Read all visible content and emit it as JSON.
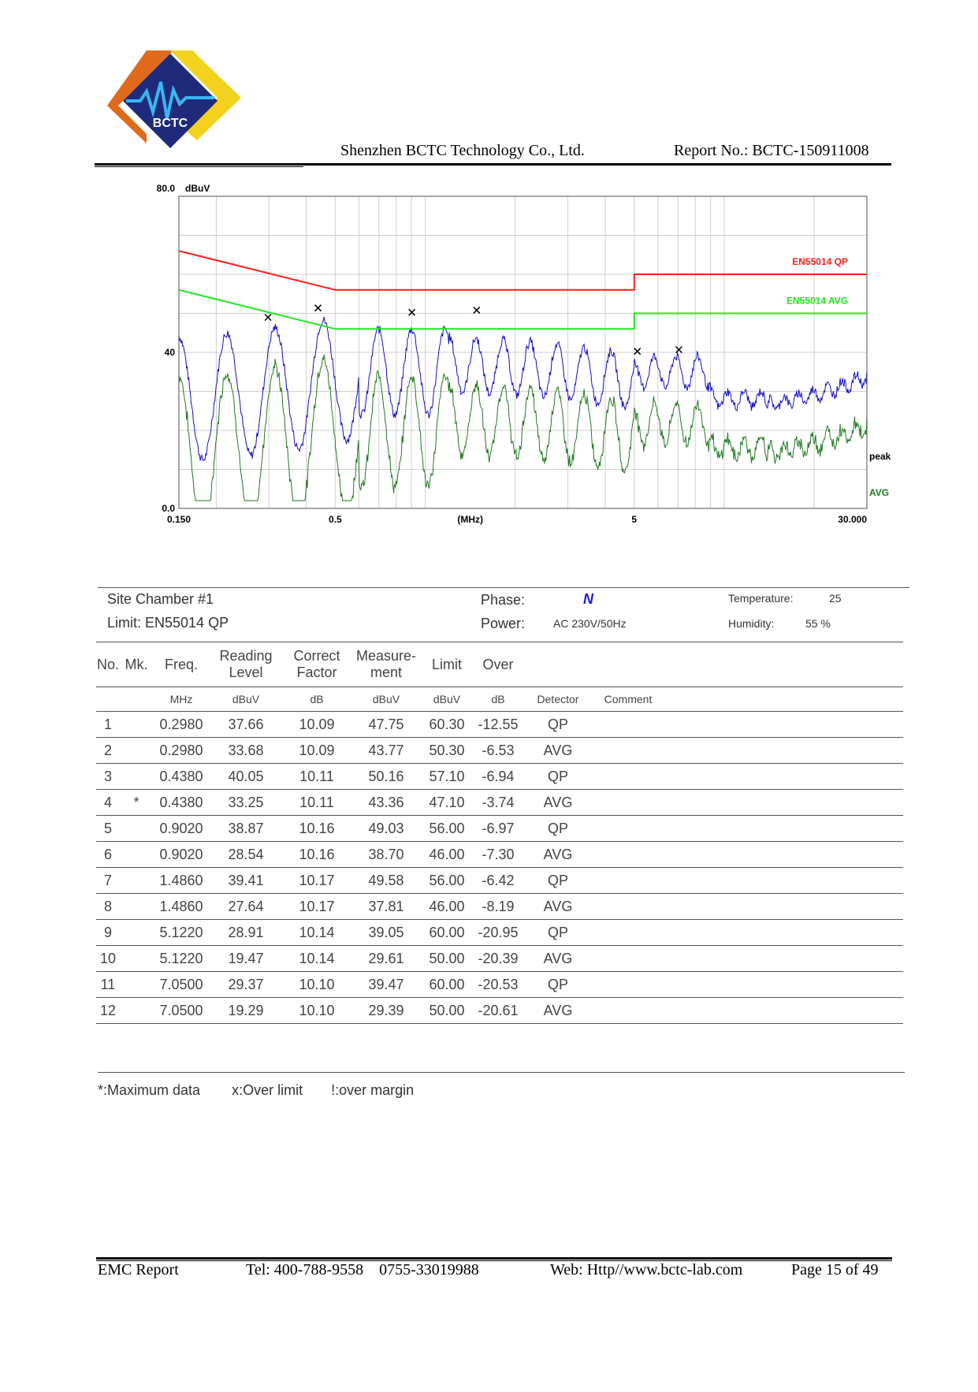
{
  "header": {
    "logo_text": "BCTC",
    "company": "Shenzhen BCTC Technology Co., Ltd.",
    "report_no": "Report No.: BCTC-150911008"
  },
  "chart_data": {
    "type": "line",
    "x_scale": "log",
    "xlim": [
      0.15,
      30
    ],
    "ylim": [
      0,
      80
    ],
    "y_unit": "dBuV",
    "x_unit": "(MHz)",
    "y_ticks": [
      "80.0",
      "40",
      "0.0"
    ],
    "x_ticks": [
      "0.150",
      "0.5",
      "5",
      "30.000"
    ],
    "limit_lines": [
      {
        "name": "EN55014  QP",
        "color": "#ff1a1a",
        "points": [
          [
            0.15,
            66
          ],
          [
            0.5,
            56
          ],
          [
            5,
            56
          ],
          [
            5,
            60
          ],
          [
            30,
            60
          ]
        ]
      },
      {
        "name": "EN55014  AVG",
        "color": "#1ee61e",
        "points": [
          [
            0.15,
            56
          ],
          [
            0.5,
            46
          ],
          [
            5,
            46
          ],
          [
            5,
            50
          ],
          [
            30,
            50
          ]
        ]
      }
    ],
    "series": [
      {
        "name": "peak",
        "color": "#1010c8"
      },
      {
        "name": "AVG",
        "color": "#1e7a1e"
      }
    ],
    "markers": [
      {
        "x": 0.298,
        "y": 47.75
      },
      {
        "x": 0.438,
        "y": 50.16
      },
      {
        "x": 0.902,
        "y": 49.03
      },
      {
        "x": 1.486,
        "y": 49.58
      },
      {
        "x": 5.122,
        "y": 39.05
      },
      {
        "x": 7.05,
        "y": 39.47
      }
    ]
  },
  "info": {
    "site": "Site  Chamber #1",
    "limit": "Limit:  EN55014  QP",
    "phase_label": "Phase:",
    "phase_value": "N",
    "power_label": "Power:",
    "power_value": "AC 230V/50Hz",
    "temp_label": "Temperature:",
    "temp_value": "25",
    "hum_label": "Humidity:",
    "hum_value": "55 %"
  },
  "table": {
    "headers": [
      "No.",
      "Mk.",
      "Freq.",
      "Reading Level",
      "Correct Factor",
      "Measure- ment",
      "Limit",
      "Over",
      "",
      ""
    ],
    "headers_line1": {
      "reading": "Reading",
      "correct": "Correct",
      "measure": "Measure-"
    },
    "headers_line2": {
      "reading": "Level",
      "correct": "Factor",
      "measure": "ment"
    },
    "units": [
      "",
      "",
      "MHz",
      "dBuV",
      "dB",
      "dBuV",
      "dBuV",
      "dB",
      "Detector",
      "Comment"
    ],
    "rows": [
      [
        "1",
        "",
        "0.2980",
        "37.66",
        "10.09",
        "47.75",
        "60.30",
        "-12.55",
        "QP",
        ""
      ],
      [
        "2",
        "",
        "0.2980",
        "33.68",
        "10.09",
        "43.77",
        "50.30",
        "-6.53",
        "AVG",
        ""
      ],
      [
        "3",
        "",
        "0.4380",
        "40.05",
        "10.11",
        "50.16",
        "57.10",
        "-6.94",
        "QP",
        ""
      ],
      [
        "4",
        "*",
        "0.4380",
        "33.25",
        "10.11",
        "43.36",
        "47.10",
        "-3.74",
        "AVG",
        ""
      ],
      [
        "5",
        "",
        "0.9020",
        "38.87",
        "10.16",
        "49.03",
        "56.00",
        "-6.97",
        "QP",
        ""
      ],
      [
        "6",
        "",
        "0.9020",
        "28.54",
        "10.16",
        "38.70",
        "46.00",
        "-7.30",
        "AVG",
        ""
      ],
      [
        "7",
        "",
        "1.4860",
        "39.41",
        "10.17",
        "49.58",
        "56.00",
        "-6.42",
        "QP",
        ""
      ],
      [
        "8",
        "",
        "1.4860",
        "27.64",
        "10.17",
        "37.81",
        "46.00",
        "-8.19",
        "AVG",
        ""
      ],
      [
        "9",
        "",
        "5.1220",
        "28.91",
        "10.14",
        "39.05",
        "60.00",
        "-20.95",
        "QP",
        ""
      ],
      [
        "10",
        "",
        "5.1220",
        "19.47",
        "10.14",
        "29.61",
        "50.00",
        "-20.39",
        "AVG",
        ""
      ],
      [
        "11",
        "",
        "7.0500",
        "29.37",
        "10.10",
        "39.47",
        "60.00",
        "-20.53",
        "QP",
        ""
      ],
      [
        "12",
        "",
        "7.0500",
        "19.29",
        "10.10",
        "29.39",
        "50.00",
        "-20.61",
        "AVG",
        ""
      ]
    ]
  },
  "notes": {
    "max": "*:Maximum data",
    "over": "x:Over limit",
    "margin": "!:over margin"
  },
  "footer": {
    "left": "EMC Report",
    "tel": "Tel: 400-788-9558    0755-33019988",
    "web": "Web: Http//www.bctc-lab.com",
    "page": "Page 15 of 49"
  }
}
